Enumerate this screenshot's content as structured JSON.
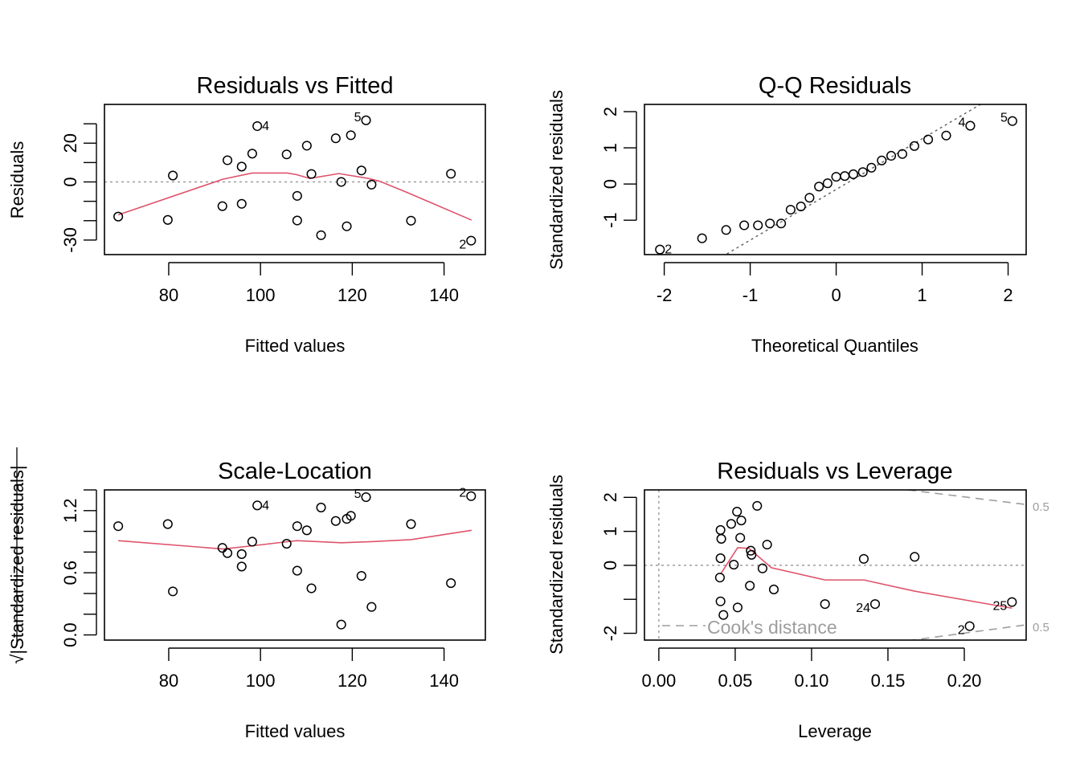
{
  "colors": {
    "points": "#000000",
    "smoother": "#DF536B",
    "reference": "#9E9E9E",
    "cook": "#9E9E9E"
  },
  "chart_data": [
    {
      "type": "scatter",
      "title": "Residuals vs Fitted",
      "xlabel": "Fitted values",
      "ylabel": "Residuals",
      "xlim": [
        66,
        149
      ],
      "ylim": [
        -37.5,
        40
      ],
      "xticks": [
        80,
        100,
        120,
        140
      ],
      "xtick_labels": [
        "80",
        "100",
        "120",
        "140"
      ],
      "yticks": [
        -30,
        -20,
        -10,
        0,
        10,
        20,
        30
      ],
      "ytick_labels": [
        "-30",
        "",
        "",
        "0",
        "",
        "20",
        ""
      ],
      "hline": 0,
      "x": [
        69.0,
        79.8,
        80.9,
        91.7,
        92.8,
        95.9,
        95.9,
        98.2,
        99.3,
        105.7,
        108.0,
        108.0,
        110.1,
        111.1,
        113.2,
        116.4,
        117.6,
        118.8,
        119.7,
        122.0,
        123.0,
        124.2,
        132.8,
        141.5,
        145.9
      ],
      "y": [
        -17.9,
        -19.6,
        3.3,
        -12.5,
        11.2,
        -11.3,
        7.9,
        14.6,
        28.8,
        14.2,
        -7.2,
        -19.9,
        18.7,
        4.1,
        -27.5,
        22.5,
        0.0,
        -22.9,
        24.1,
        5.9,
        31.8,
        -1.4,
        -20.0,
        4.2,
        -30.3
      ],
      "point_labels": [
        {
          "index": 8,
          "text": "4",
          "side": "right"
        },
        {
          "index": 20,
          "text": "5",
          "side": "left"
        },
        {
          "index": 24,
          "text": "2",
          "side": "left-below"
        }
      ],
      "smoother": {
        "x": [
          69.0,
          91.8,
          98.2,
          105.8,
          107.8,
          110.7,
          117.1,
          123.5,
          125.9,
          132.3,
          146.0
        ],
        "y": [
          -17.0,
          1.4,
          4.6,
          4.6,
          3.8,
          1.8,
          4.3,
          1.8,
          0.4,
          -5.8,
          -19.7
        ]
      }
    },
    {
      "type": "scatter",
      "title": "Q-Q Residuals",
      "xlabel": "Theoretical Quantiles",
      "ylabel": "Standardized residuals",
      "xlim": [
        -2.23,
        2.21
      ],
      "ylim": [
        -1.95,
        2.2
      ],
      "xticks": [
        -2,
        -1,
        0,
        1,
        2
      ],
      "xtick_labels": [
        "-2",
        "-1",
        "0",
        "1",
        "2"
      ],
      "yticks": [
        -1,
        0,
        1,
        2
      ],
      "ytick_labels": [
        "-1",
        "0",
        "1",
        "2"
      ],
      "reference_line": {
        "intercept": -0.15,
        "slope": 1.4
      },
      "x": [
        -2.05,
        -1.56,
        -1.28,
        -1.07,
        -0.91,
        -0.77,
        -0.64,
        -0.53,
        -0.41,
        -0.31,
        -0.2,
        -0.1,
        0.0,
        0.1,
        0.2,
        0.31,
        0.41,
        0.53,
        0.64,
        0.77,
        0.91,
        1.07,
        1.28,
        1.56,
        2.05
      ],
      "y": [
        -1.81,
        -1.5,
        -1.27,
        -1.14,
        -1.14,
        -1.09,
        -1.09,
        -0.71,
        -0.62,
        -0.38,
        -0.07,
        0.02,
        0.2,
        0.22,
        0.27,
        0.33,
        0.45,
        0.65,
        0.78,
        0.83,
        1.05,
        1.23,
        1.34,
        1.61,
        1.74
      ],
      "point_labels": [
        {
          "index": 0,
          "text": "2",
          "side": "right"
        },
        {
          "index": 23,
          "text": "4",
          "side": "left"
        },
        {
          "index": 24,
          "text": "5",
          "side": "left"
        }
      ]
    },
    {
      "type": "scatter",
      "title": "Scale-Location",
      "xlabel": "Fitted values",
      "ylabel": "√|Standardized residuals|",
      "xlim": [
        66,
        149
      ],
      "ylim": [
        -0.05,
        1.4
      ],
      "xticks": [
        80,
        100,
        120,
        140
      ],
      "xtick_labels": [
        "80",
        "100",
        "120",
        "140"
      ],
      "yticks": [
        0.0,
        0.2,
        0.4,
        0.6,
        0.8,
        1.0,
        1.2,
        1.4
      ],
      "ytick_labels": [
        "0.0",
        "",
        "",
        "0.6",
        "",
        "",
        "1.2",
        ""
      ],
      "x": [
        69.0,
        79.8,
        80.9,
        91.7,
        92.8,
        95.9,
        95.9,
        98.2,
        99.3,
        105.7,
        108.0,
        108.0,
        110.1,
        111.1,
        113.2,
        116.4,
        117.6,
        118.8,
        119.7,
        122.0,
        123.0,
        124.2,
        132.8,
        141.5,
        145.9
      ],
      "y": [
        1.05,
        1.07,
        0.42,
        0.84,
        0.79,
        0.66,
        0.78,
        0.9,
        1.25,
        0.88,
        0.62,
        1.05,
        1.01,
        0.45,
        1.23,
        1.1,
        0.1,
        1.12,
        1.15,
        0.57,
        1.33,
        0.27,
        1.07,
        0.5,
        1.34
      ],
      "point_labels": [
        {
          "index": 8,
          "text": "4",
          "side": "right"
        },
        {
          "index": 20,
          "text": "5",
          "side": "left"
        },
        {
          "index": 24,
          "text": "2",
          "side": "left"
        }
      ],
      "smoother": {
        "x": [
          69.0,
          91.8,
          98.2,
          105.8,
          108.0,
          117.6,
          124.2,
          132.8,
          146.0
        ],
        "y": [
          0.91,
          0.83,
          0.86,
          0.9,
          0.91,
          0.89,
          0.9,
          0.92,
          1.01
        ]
      }
    },
    {
      "type": "scatter",
      "title": "Residuals vs Leverage",
      "xlabel": "Leverage",
      "ylabel": "Standardized residuals",
      "xlim": [
        -0.0094,
        0.2405
      ],
      "ylim": [
        -2.2,
        2.22
      ],
      "xticks": [
        0.0,
        0.05,
        0.1,
        0.15,
        0.2
      ],
      "xtick_labels": [
        "0.00",
        "0.05",
        "0.10",
        "0.15",
        "0.20"
      ],
      "yticks": [
        -2,
        -1,
        0,
        1,
        2
      ],
      "ytick_labels": [
        "-2",
        "",
        "0",
        "1",
        "2"
      ],
      "hline": 0,
      "vline": 0,
      "x": [
        0.0644,
        0.0512,
        0.054,
        0.0474,
        0.0404,
        0.0409,
        0.0533,
        0.0709,
        0.0602,
        0.0607,
        0.0404,
        0.0491,
        0.0679,
        0.04,
        0.0596,
        0.0753,
        0.0404,
        0.0516,
        0.0423,
        0.1088,
        0.1342,
        0.1416,
        0.1675,
        0.2035,
        0.2312
      ],
      "y": [
        1.75,
        1.58,
        1.32,
        1.22,
        1.04,
        0.78,
        0.81,
        0.61,
        0.43,
        0.31,
        0.21,
        0.02,
        -0.09,
        -0.36,
        -0.6,
        -0.71,
        -1.06,
        -1.24,
        -1.46,
        -1.14,
        0.19,
        -1.14,
        0.25,
        -1.79,
        -1.08
      ],
      "point_labels": [
        {
          "index": 21,
          "text": "24",
          "side": "left-below"
        },
        {
          "index": 23,
          "text": "2",
          "side": "left-below"
        },
        {
          "index": 24,
          "text": "25",
          "side": "left-below"
        }
      ],
      "smoother": {
        "x": [
          0.0404,
          0.0516,
          0.059,
          0.0737,
          0.1088,
          0.1342,
          0.1675,
          0.2312
        ],
        "y": [
          -0.26,
          0.52,
          0.5,
          -0.07,
          -0.43,
          -0.43,
          -0.76,
          -1.26
        ]
      },
      "cook_contours": {
        "level_label": "0.5",
        "upper": {
          "x": [
            0.163,
            0.2405
          ],
          "y": [
            2.22,
            1.79
          ]
        },
        "lower": {
          "x": [
            0.163,
            0.2405
          ],
          "y": [
            -2.22,
            -1.75
          ]
        }
      },
      "legend": {
        "text": "Cook's distance",
        "position": "bottom-left"
      }
    }
  ]
}
